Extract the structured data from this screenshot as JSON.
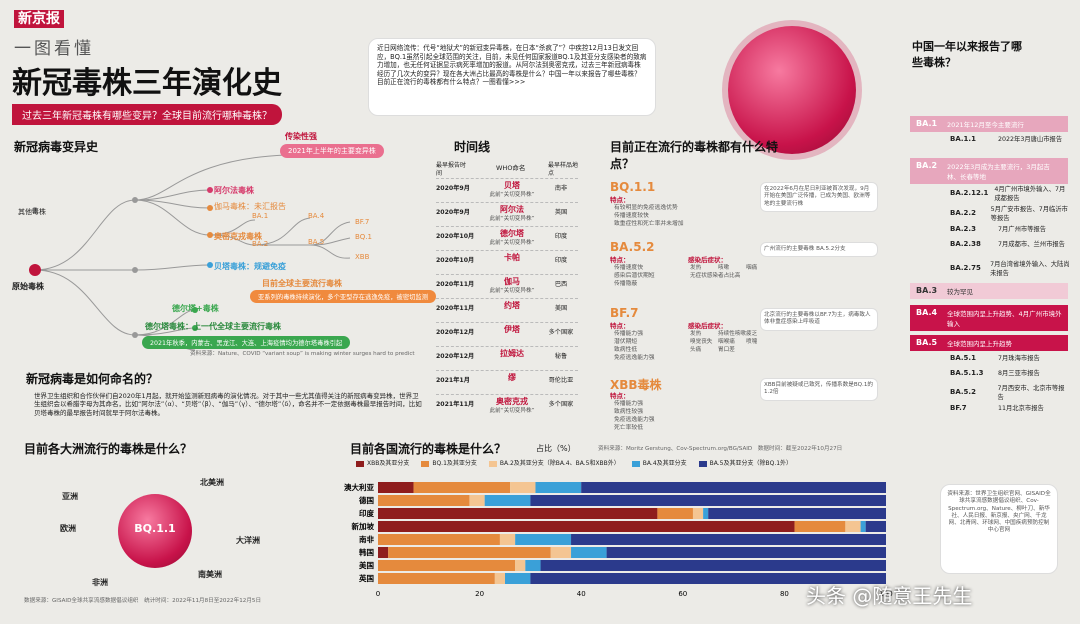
{
  "header": {
    "brand": "新京报",
    "kicker": "一图看懂",
    "title": "新冠毒株三年演化史",
    "subtitle": "过去三年新冠毒株有哪些变异？全球目前流行哪种毒株？"
  },
  "intro": "近日网络流传：代号“地狱犬”的新冠变异毒株，在日本“杀疯了”？中疾控12月13日发文回应，BQ.1虽然引起全球范围的关注，目前，未见任何国家报道BQ.1及其亚分支感染者的致病力增加，也无任何证据显示病死率增加的报道。从阿尔法到奥密克戎，过去三年新冠病毒株经历了几次大的变异？现在各大洲占比最高的毒株是什么？中国一年以来报告了哪些毒株？目前正在流行的毒株都有什么特点？一图看懂>>>",
  "variants_tree": {
    "title": "新冠病毒变异史",
    "origin": "原始毒株",
    "other": "其他毒株",
    "transmissibility": "传染性强",
    "early_2021": "2021年上半年的主要变异株",
    "alpha": "阿尔法毒株",
    "gamma": "伽马毒株：未汇报告",
    "omicron": "奥密克戎毒株",
    "beta": "贝塔毒株：规避免疫",
    "delta_plus": "德尔塔+毒株",
    "delta": "德尔塔毒株：上一代全球主要流行毒株",
    "delta_note": "2021年秋季，内蒙古、黑龙江、大连、上海疫情均为德尔塔毒株引起",
    "current_main": "目前全球主要流行毒株",
    "current_note": "亚系列的毒株持续演化，多个亚型存在逃逸免疫，被密切监测",
    "nodes": [
      "BA.1",
      "BA.2",
      "BA.4",
      "BA.5",
      "BF.7",
      "BQ.1",
      "XBB"
    ],
    "source": "资料来源：Nature、COVID “variant soup” is making winter surges hard to predict"
  },
  "timeline": {
    "title": "时间线",
    "col1": "最早报告时间",
    "col2": "WHO命名",
    "col3": "最早样品地点",
    "rows": [
      {
        "date": "2020年9月",
        "name": "贝塔",
        "note": "此前“关切变异株”",
        "place": "南非"
      },
      {
        "date": "2020年9月",
        "name": "阿尔法",
        "note": "此前“关切变异株”",
        "place": "英国"
      },
      {
        "date": "2020年10月",
        "name": "德尔塔",
        "note": "此前“关切变异株”",
        "place": "印度"
      },
      {
        "date": "2020年10月",
        "name": "卡帕",
        "note": "",
        "place": "印度"
      },
      {
        "date": "2020年11月",
        "name": "伽马",
        "note": "此前“关切变异株”",
        "place": "巴西"
      },
      {
        "date": "2020年11月",
        "name": "约塔",
        "note": "",
        "place": "美国"
      },
      {
        "date": "2020年12月",
        "name": "伊塔",
        "note": "",
        "place": "多个国家"
      },
      {
        "date": "2020年12月",
        "name": "拉姆达",
        "note": "",
        "place": "秘鲁"
      },
      {
        "date": "2021年1月",
        "name": "缪",
        "note": "",
        "place": "哥伦比亚"
      },
      {
        "date": "2021年11月",
        "name": "奥密克戎",
        "note": "此前“关切变异株”",
        "place": "多个国家"
      }
    ]
  },
  "current": {
    "title": "目前正在流行的毒株都有什么特点？",
    "strains": [
      {
        "name": "BQ.1.1",
        "feat_label": "特点：",
        "feats": [
          "有较明显的免疫逃逸优势",
          "传播速度较快",
          "致重症性和死亡率并未增加"
        ],
        "note": "在2022年6月在尼日利亚被首次发现，9月开始在美国广泛传播，已成为美国、欧洲等地的主要流行株"
      },
      {
        "name": "BA.5.2",
        "feat_label": "特点：",
        "feats": [
          "传播速度快",
          "感染后潜伏期短",
          "传播隐蔽"
        ],
        "sym_label": "感染后症状：",
        "syms": [
          "发热",
          "咳嗽",
          "咽痛",
          "无症状感染者占比高"
        ],
        "note": "广州流行的主要毒株 BA.5.2分支"
      },
      {
        "name": "BF.7",
        "feat_label": "特点：",
        "feats": [
          "传播能力强",
          "潜伏期短",
          "致病性低",
          "免疫逃逸能力强"
        ],
        "sym_label": "感染后症状：",
        "syms": [
          "发热",
          "持续性咳嗽",
          "疲乏",
          "嗅觉丧失",
          "咽喉痛",
          "喷嚏",
          "头痛",
          "胃口差"
        ],
        "note": "北京流行的主要毒株以BF.7为主，病毒致人体非重症感染上呼吸道"
      },
      {
        "name": "XBB毒株",
        "feat_label": "特点：",
        "feats": [
          "传播能力强",
          "致病性较强",
          "免疫逃逸能力强",
          "死亡率较低"
        ],
        "note": "XBB目前被疑或已致死，传播系数是BQ.1的1.2倍"
      }
    ]
  },
  "china": {
    "title": "中国一年以来报告了哪些毒株？",
    "groups": [
      {
        "label": "BA.1",
        "desc": "2021年12月至今主要流行",
        "items": [
          {
            "k": "BA.1.1",
            "v": "2022年3月唐山市报告"
          }
        ]
      },
      {
        "label": "BA.2",
        "desc": "2022年3月成为主要流行，3月起吉林、长春等地",
        "items": [
          {
            "k": "BA.2.12.1",
            "v": "4月广州市境外输入、7月成都报告"
          },
          {
            "k": "BA.2.2",
            "v": "5月广安市报告、7月临沂市等报告"
          },
          {
            "k": "BA.2.3",
            "v": "7月广州市等报告"
          },
          {
            "k": "BA.2.38",
            "v": "7月成都市、兰州市报告"
          },
          {
            "k": "BA.2.75",
            "v": "7月台湾省境外输入、大陆尚未报告"
          }
        ]
      },
      {
        "label": "BA.3",
        "desc": "较为罕见",
        "items": []
      },
      {
        "label": "BA.4",
        "desc": "全球范围内呈上升趋势、4月广州市境外输入",
        "items": []
      },
      {
        "label": "BA.5",
        "desc": "全球范围内呈上升趋势",
        "items": [
          {
            "k": "BA.5.1",
            "v": "7月珠海市报告"
          },
          {
            "k": "BA.5.1.3",
            "v": "8月三亚市报告"
          },
          {
            "k": "BA.5.2",
            "v": "7月西安市、北京市等报告"
          },
          {
            "k": "BF.7",
            "v": "11月北京市报告"
          }
        ]
      }
    ]
  },
  "naming": {
    "title": "新冠病毒是如何命名的？",
    "text": "世界卫生组织和合作伙伴们自2020年1月起，就开始监测新冠病毒的演化情况。对于其中一些尤其值得关注的新冠病毒变异株，世界卫生组织会以希腊字母为其命名，比如“阿尔法”（α）、“贝塔”（β）、“伽马”（γ）、“德尔塔”（δ），命名并不一定依据毒株最早报告时间，比如贝塔毒株的最早报告时间就早于阿尔法毒株。"
  },
  "continents": {
    "title": "目前各大洲流行的毒株是什么？",
    "center": "BQ.1.1",
    "names": [
      "亚洲",
      "北美洲",
      "欧洲",
      "大洋洲",
      "非洲",
      "南美洲"
    ],
    "source": "数据来源：GISAID全球共享流感数据倡议组织　统计时间：2022年11月8日至2022年12月5日"
  },
  "countries_chart": {
    "title": "目前各国流行的毒株是什么？",
    "unit": "占比（%）",
    "source": "资料来源：Moritz Gerstung、Cov-Spectrum.org/BG/SAID　数据时间：截至2022年10月27日"
  },
  "chart_data": {
    "type": "bar",
    "orientation": "horizontal-stacked",
    "title": "目前各国流行的毒株是什么？",
    "ylabel": "占比（%）",
    "xlim": [
      0,
      100
    ],
    "xticks": [
      0,
      20,
      40,
      60,
      80,
      100
    ],
    "categories": [
      "澳大利亚",
      "德国",
      "印度",
      "新加坡",
      "南非",
      "韩国",
      "美国",
      "英国"
    ],
    "series": [
      {
        "name": "XBB及其亚分支",
        "color": "#8f1d1d",
        "values": [
          7,
          0,
          55,
          82,
          0,
          2,
          0,
          0
        ]
      },
      {
        "name": "BQ.1及其亚分支",
        "color": "#e58a3d",
        "values": [
          19,
          18,
          7,
          10,
          24,
          32,
          27,
          23
        ]
      },
      {
        "name": "BA.2及其亚分支（除BA.4、BA.5和XBB外）",
        "color": "#f4c592",
        "values": [
          5,
          3,
          2,
          3,
          3,
          4,
          2,
          2
        ]
      },
      {
        "name": "BA.4及其亚分支",
        "color": "#3aa0d8",
        "values": [
          9,
          9,
          1,
          1,
          11,
          7,
          3,
          5
        ]
      },
      {
        "name": "BA.5及其亚分支（除BQ.1外）",
        "color": "#2b3a8c",
        "values": [
          60,
          70,
          35,
          4,
          62,
          55,
          68,
          70
        ]
      }
    ]
  },
  "sources_box": "资料来源：世界卫生组织官网、GISAID全球共享流感数据倡议组织、Cov-Spectrum.org、Nature、柳叶刀、新华社、人民日报、新京报、央广网、千龙网、北青网、环球网、中国疾病预防控制中心官网",
  "watermark": "头条 @随意王先生"
}
